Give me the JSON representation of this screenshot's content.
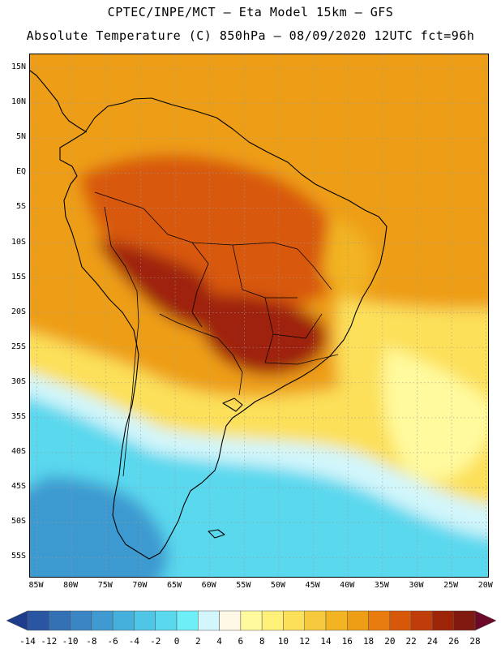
{
  "header": {
    "line1": "CPTEC/INPE/MCT –  Eta Model 15km – GFS",
    "line2": "Absolute Temperature (C) 850hPa – 08/09/2020 12UTC fct=96h"
  },
  "axes": {
    "lat_labels": [
      "15N",
      "10N",
      "5N",
      "EQ",
      "5S",
      "10S",
      "15S",
      "20S",
      "25S",
      "30S",
      "35S",
      "40S",
      "45S",
      "50S",
      "55S"
    ],
    "lon_labels": [
      "85W",
      "80W",
      "75W",
      "70W",
      "65W",
      "60W",
      "55W",
      "50W",
      "45W",
      "40W",
      "35W",
      "30W",
      "25W",
      "20W"
    ],
    "lat_range": [
      17,
      -58
    ],
    "lon_range": [
      -86,
      -19.5
    ]
  },
  "colorbar": {
    "labels": [
      "-14",
      "-12",
      "-10",
      "-8",
      "-6",
      "-4",
      "-2",
      "0",
      "2",
      "4",
      "6",
      "8",
      "10",
      "12",
      "14",
      "16",
      "18",
      "20",
      "22",
      "24",
      "26",
      "28"
    ],
    "colors": [
      "#1e3c8c",
      "#2a55a0",
      "#3470b4",
      "#3a86c4",
      "#3e9ad0",
      "#46b0dc",
      "#50c6e6",
      "#5ad8ee",
      "#6eeef6",
      "#d2f6fb",
      "#fff8e6",
      "#fffa9e",
      "#fff07a",
      "#fce05a",
      "#f6ca3c",
      "#f2b422",
      "#ee9e14",
      "#e87c0e",
      "#d8580a",
      "#c03c08",
      "#9e2408",
      "#801a10",
      "#6a0a28"
    ]
  },
  "chart_data": {
    "type": "heatmap",
    "title": "Absolute Temperature (C) 850hPa – 08/09/2020 12UTC fct=96h",
    "variable": "Absolute Temperature (C) 850hPa",
    "lat_range": [
      17,
      -58
    ],
    "lon_range": [
      -86,
      -19.5
    ],
    "scale_min": -14,
    "scale_max": 28,
    "zones": [
      {
        "name": "tropical-ocean",
        "value": 17
      },
      {
        "name": "amazon",
        "value": 21
      },
      {
        "name": "central-hot-core",
        "value": 24
      },
      {
        "name": "paraguay-south-brazil",
        "value": 24
      },
      {
        "name": "northeast-brazil",
        "value": 15
      },
      {
        "name": "atlantic-subtropics",
        "value": 11
      },
      {
        "name": "atlantic-cool-tongue",
        "value": 7
      },
      {
        "name": "mid-latitude-band",
        "value": 3
      },
      {
        "name": "southern-ocean",
        "value": -1
      },
      {
        "name": "patagonia-andes",
        "value": -7
      }
    ]
  }
}
